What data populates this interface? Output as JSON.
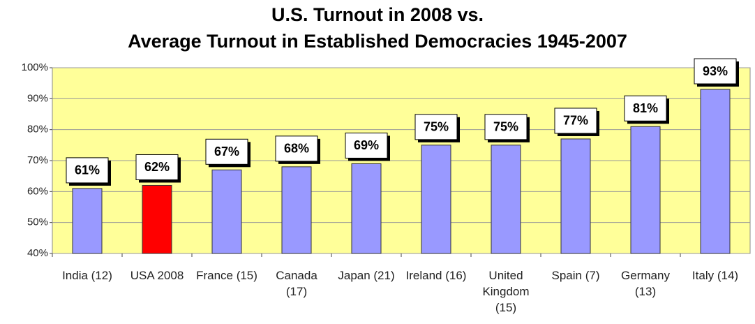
{
  "chart_data": {
    "type": "bar",
    "title": [
      "U.S. Turnout in 2008 vs.",
      "Average Turnout in Established Democracies 1945-2007"
    ],
    "categories": [
      "India (12)",
      "USA 2008",
      "France (15)",
      "Canada (17)",
      "Japan (21)",
      "Ireland (16)",
      "United Kingdom (15)",
      "Spain (7)",
      "Germany (13)",
      "Italy (14)"
    ],
    "values": [
      61,
      62,
      67,
      68,
      69,
      75,
      75,
      77,
      81,
      93
    ],
    "value_labels": [
      "61%",
      "62%",
      "67%",
      "68%",
      "69%",
      "75%",
      "75%",
      "77%",
      "81%",
      "93%"
    ],
    "colors": [
      "#9999ff",
      "#ff0000",
      "#9999ff",
      "#9999ff",
      "#9999ff",
      "#9999ff",
      "#9999ff",
      "#9999ff",
      "#9999ff",
      "#9999ff"
    ],
    "ylim": [
      40,
      100
    ],
    "yticks": [
      {
        "value": 40,
        "label": "40%"
      },
      {
        "value": 50,
        "label": "50%"
      },
      {
        "value": 60,
        "label": "60%"
      },
      {
        "value": 70,
        "label": "70%"
      },
      {
        "value": 80,
        "label": "80%"
      },
      {
        "value": 90,
        "label": "90%"
      },
      {
        "value": 100,
        "label": "100%"
      }
    ],
    "grid": true
  }
}
